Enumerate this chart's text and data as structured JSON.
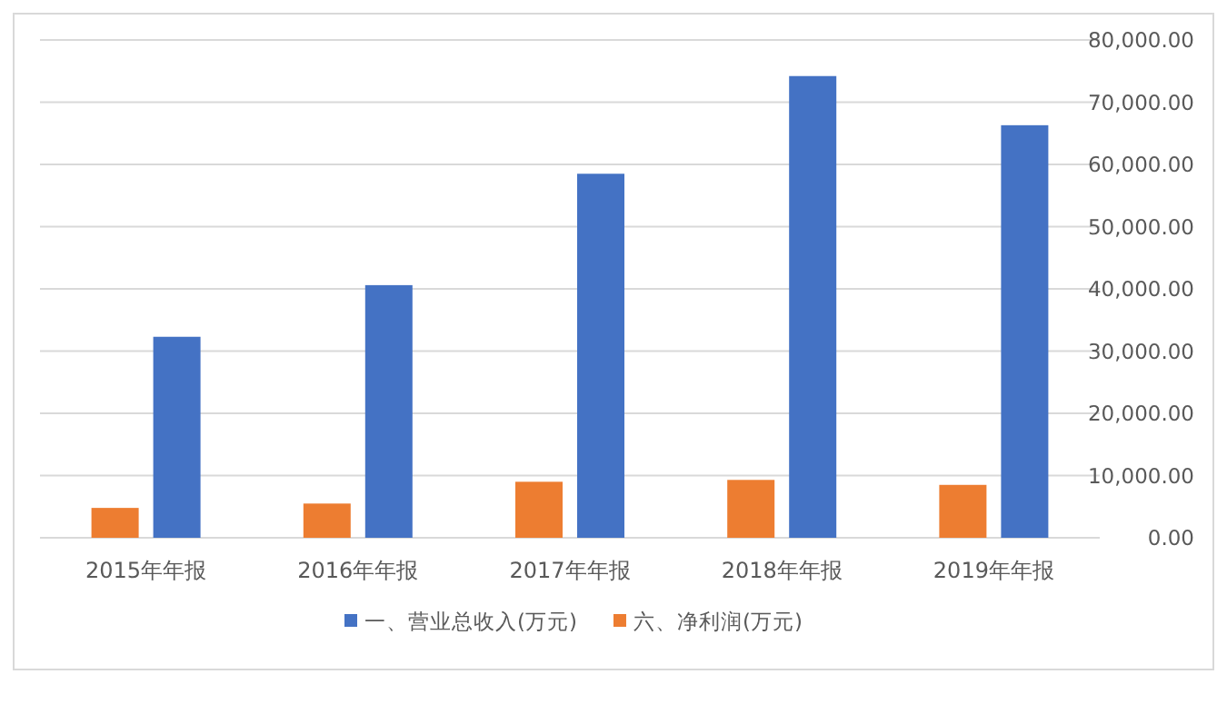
{
  "chart_data": {
    "type": "bar",
    "categories": [
      "2015年年报",
      "2016年年报",
      "2017年年报",
      "2018年年报",
      "2019年年报"
    ],
    "series": [
      {
        "name": "一、营业总收入(万元)",
        "color": "#4472c4",
        "values": [
          32300,
          40600,
          58500,
          74200,
          66300
        ]
      },
      {
        "name": "六、净利润(万元)",
        "color": "#ed7d31",
        "values": [
          4800,
          5500,
          9000,
          9300,
          8500
        ]
      }
    ],
    "ylim": [
      0,
      80000
    ],
    "yticks": [
      {
        "value": 0,
        "label": "0.00"
      },
      {
        "value": 10000,
        "label": "10,000.00"
      },
      {
        "value": 20000,
        "label": "20,000.00"
      },
      {
        "value": 30000,
        "label": "30,000.00"
      },
      {
        "value": 40000,
        "label": "40,000.00"
      },
      {
        "value": 50000,
        "label": "50,000.00"
      },
      {
        "value": 60000,
        "label": "60,000.00"
      },
      {
        "value": 70000,
        "label": "70,000.00"
      },
      {
        "value": 80000,
        "label": "80,000.00"
      }
    ],
    "grid": "y",
    "legend": "bottom"
  }
}
